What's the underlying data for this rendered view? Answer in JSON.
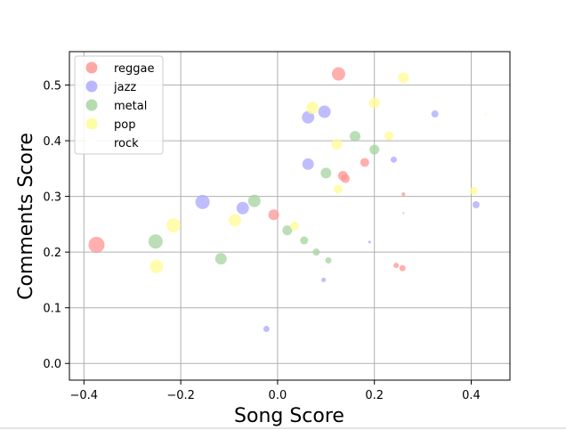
{
  "chart_data": {
    "type": "scatter",
    "title": "",
    "xlabel": "Song Score",
    "ylabel": "Comments Score",
    "xlim": [
      -0.43,
      0.48
    ],
    "ylim": [
      -0.03,
      0.56
    ],
    "xticks": [
      -0.4,
      -0.2,
      0.0,
      0.2,
      0.4
    ],
    "xtick_labels": [
      "−0.4",
      "−0.2",
      "0.0",
      "0.2",
      "0.4"
    ],
    "yticks": [
      0.0,
      0.1,
      0.2,
      0.3,
      0.4,
      0.5
    ],
    "ytick_labels": [
      "0.0",
      "0.1",
      "0.2",
      "0.3",
      "0.4",
      "0.5"
    ],
    "grid": true,
    "legend_position": "top-left",
    "series": [
      {
        "name": "reggae",
        "color": "#ff9896",
        "points": [
          {
            "x": -0.374,
            "y": 0.213,
            "size": 9
          },
          {
            "x": -0.008,
            "y": 0.267,
            "size": 6
          },
          {
            "x": 0.126,
            "y": 0.52,
            "size": 7.5
          },
          {
            "x": 0.135,
            "y": 0.337,
            "size": 5.5
          },
          {
            "x": 0.14,
            "y": 0.332,
            "size": 5
          },
          {
            "x": 0.18,
            "y": 0.361,
            "size": 5
          },
          {
            "x": 0.245,
            "y": 0.176,
            "size": 3
          },
          {
            "x": 0.258,
            "y": 0.171,
            "size": 3.5
          },
          {
            "x": 0.26,
            "y": 0.304,
            "size": 2
          }
        ]
      },
      {
        "name": "jazz",
        "color": "#aeaaff",
        "points": [
          {
            "x": -0.155,
            "y": 0.29,
            "size": 8
          },
          {
            "x": -0.072,
            "y": 0.279,
            "size": 7
          },
          {
            "x": -0.023,
            "y": 0.062,
            "size": 3.5
          },
          {
            "x": 0.063,
            "y": 0.442,
            "size": 7
          },
          {
            "x": 0.063,
            "y": 0.358,
            "size": 6.5
          },
          {
            "x": 0.097,
            "y": 0.452,
            "size": 7
          },
          {
            "x": 0.095,
            "y": 0.15,
            "size": 2.5
          },
          {
            "x": 0.19,
            "y": 0.218,
            "size": 1.5
          },
          {
            "x": 0.24,
            "y": 0.366,
            "size": 3.5
          },
          {
            "x": 0.26,
            "y": 0.27,
            "size": 1
          },
          {
            "x": 0.325,
            "y": 0.448,
            "size": 4
          },
          {
            "x": 0.41,
            "y": 0.285,
            "size": 4
          }
        ]
      },
      {
        "name": "metal",
        "color": "#a8d5a2",
        "points": [
          {
            "x": -0.252,
            "y": 0.219,
            "size": 8
          },
          {
            "x": -0.117,
            "y": 0.188,
            "size": 6.5
          },
          {
            "x": -0.048,
            "y": 0.292,
            "size": 7
          },
          {
            "x": 0.02,
            "y": 0.239,
            "size": 5.5
          },
          {
            "x": 0.055,
            "y": 0.221,
            "size": 4.5
          },
          {
            "x": 0.08,
            "y": 0.2,
            "size": 4
          },
          {
            "x": 0.1,
            "y": 0.342,
            "size": 6
          },
          {
            "x": 0.105,
            "y": 0.185,
            "size": 3.5
          },
          {
            "x": 0.16,
            "y": 0.408,
            "size": 6
          },
          {
            "x": 0.2,
            "y": 0.384,
            "size": 5.5
          }
        ]
      },
      {
        "name": "pop",
        "color": "#fffb97",
        "points": [
          {
            "x": -0.25,
            "y": 0.174,
            "size": 7.5
          },
          {
            "x": -0.215,
            "y": 0.248,
            "size": 8
          },
          {
            "x": -0.088,
            "y": 0.257,
            "size": 7
          },
          {
            "x": 0.035,
            "y": 0.247,
            "size": 5
          },
          {
            "x": 0.072,
            "y": 0.459,
            "size": 7
          },
          {
            "x": 0.122,
            "y": 0.394,
            "size": 6
          },
          {
            "x": 0.125,
            "y": 0.313,
            "size": 5
          },
          {
            "x": 0.2,
            "y": 0.468,
            "size": 6
          },
          {
            "x": 0.23,
            "y": 0.409,
            "size": 5
          },
          {
            "x": 0.26,
            "y": 0.513,
            "size": 6
          },
          {
            "x": 0.405,
            "y": 0.31,
            "size": 4.5
          },
          {
            "x": 0.43,
            "y": 0.448,
            "size": 1
          }
        ]
      },
      {
        "name": "rock",
        "color": "#ffffff",
        "points": []
      }
    ]
  }
}
